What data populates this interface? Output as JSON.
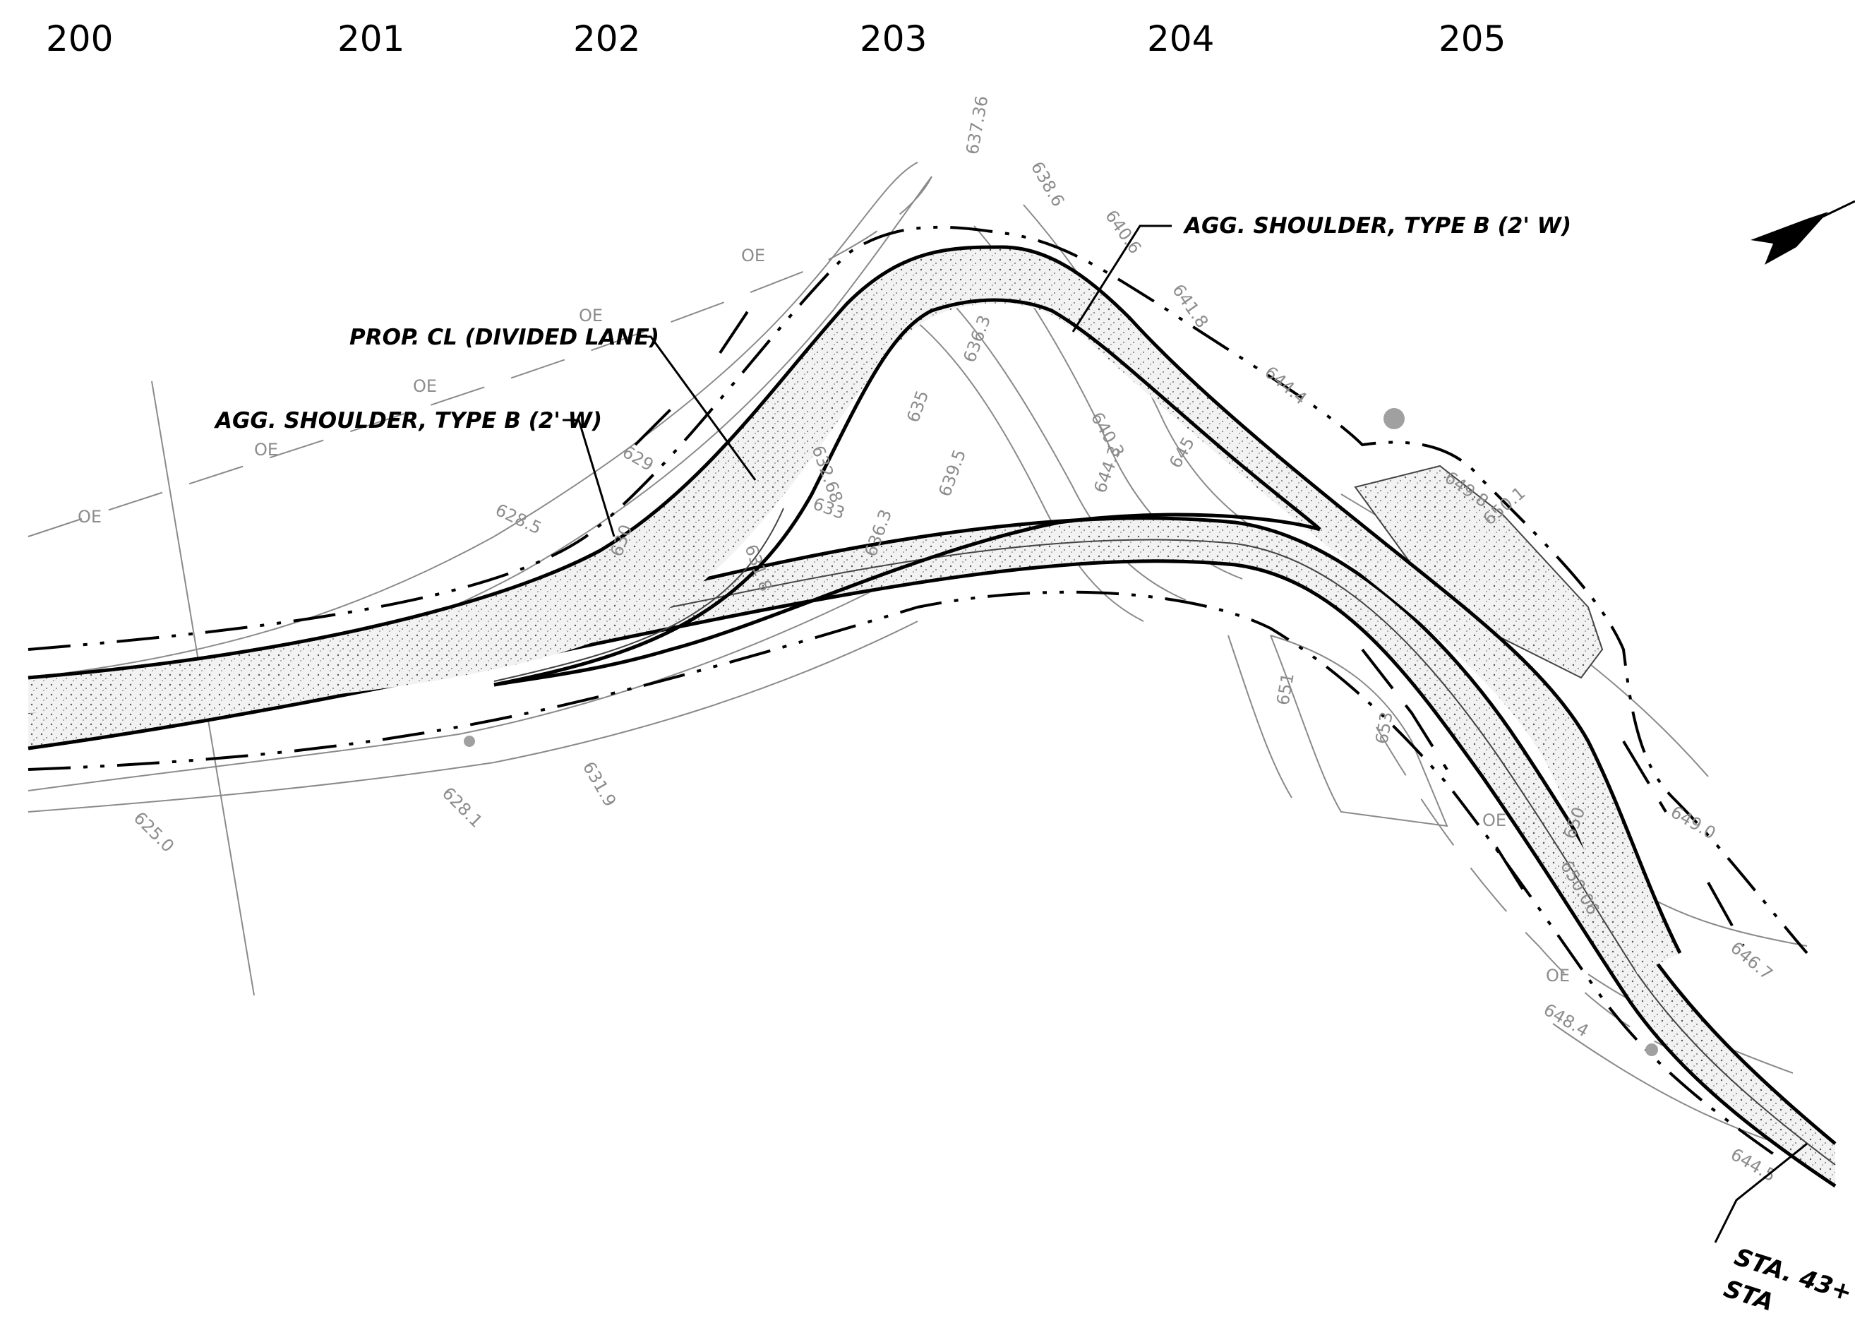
{
  "stations": [
    "200",
    "201",
    "202",
    "203",
    "204",
    "205"
  ],
  "callouts": {
    "shoulder_top": "AGG. SHOULDER, TYPE B (2' W)",
    "centerline": "PROP. CL (DIVIDED LANE)",
    "shoulder_left": "AGG. SHOULDER, TYPE B (2' W)",
    "sta_line1": "STA. 43+",
    "sta_line2": "STA"
  },
  "overhead_label": "OE",
  "contour_labels": [
    "635",
    "645",
    "650",
    "630",
    "651",
    "653"
  ],
  "spot_elevations": [
    "637.36",
    "638.6",
    "640.6",
    "641.8",
    "644.4",
    "649.8",
    "650.1",
    "628.5",
    "629",
    "636.3",
    "639.5",
    "640.3",
    "644.3",
    "632.68",
    "633",
    "631.8",
    "636.3",
    "649.0",
    "646.7",
    "648.4",
    "644.5",
    "625.0",
    "628.1",
    "631.9",
    "650.06"
  ],
  "colors": {
    "linework": "#000000",
    "contours": "#8a8a8a",
    "hatch": "#e6e6e6",
    "monument": "#a0a0a0"
  }
}
